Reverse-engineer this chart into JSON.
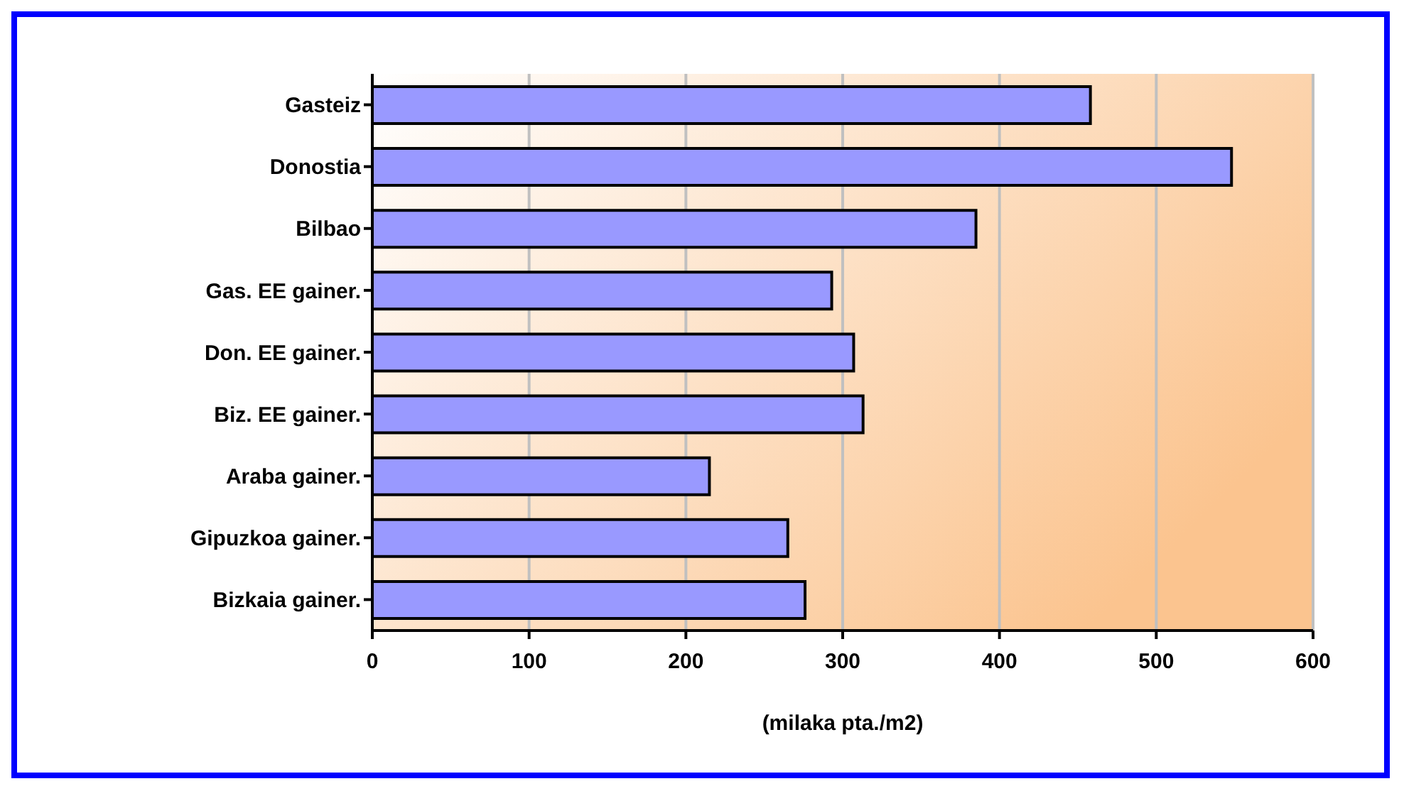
{
  "chart_data": {
    "type": "bar",
    "orientation": "horizontal",
    "xlabel": "(milaka pta./m2)",
    "categories": [
      "Gasteiz",
      "Donostia",
      "Bilbao",
      "Gas. EE gainer.",
      "Don. EE gainer.",
      "Biz. EE gainer.",
      "Araba gainer.",
      "Gipuzkoa gainer.",
      "Bizkaia gainer."
    ],
    "values": [
      458,
      548,
      385,
      293,
      307,
      313,
      215,
      265,
      276
    ],
    "color": "#9999ff",
    "xlim": [
      0,
      600
    ],
    "xticks": [
      0,
      100,
      200,
      300,
      400,
      500,
      600
    ],
    "grid": "x"
  }
}
